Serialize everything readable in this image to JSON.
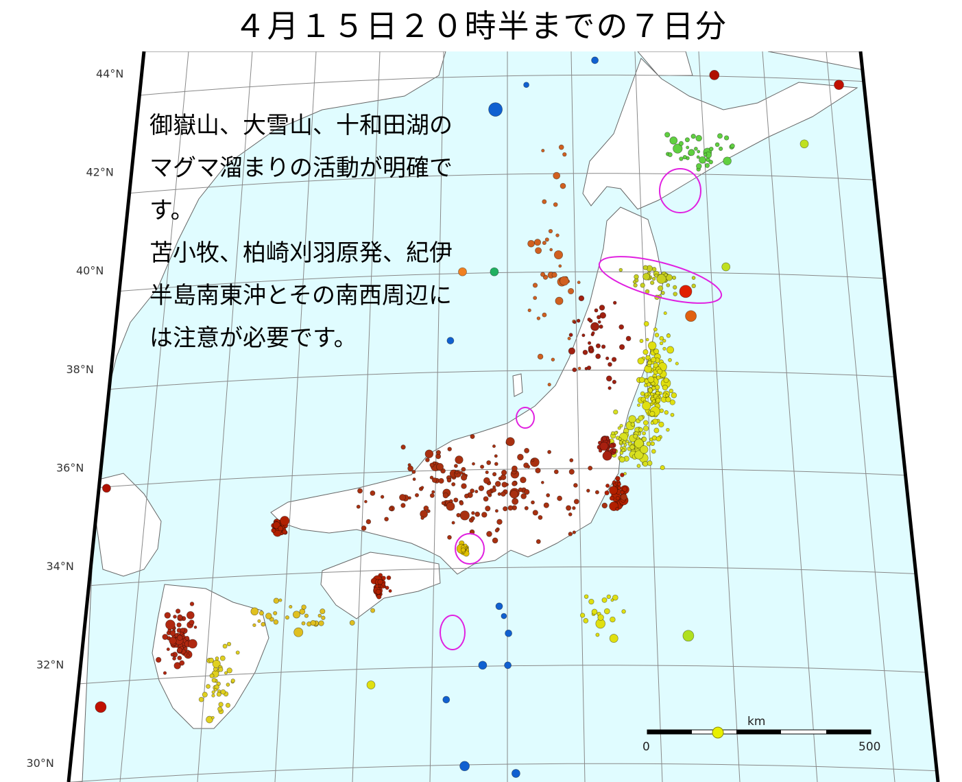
{
  "title": "４月１５日２０時半までの７日分",
  "note": {
    "lines": [
      "御嶽山、大雪山、十和田湖の",
      "マグマ溜まりの活動が明確で",
      "す。",
      "苫小牧、柏崎刈羽原発、紀伊",
      "半島南東沖とその南西周辺に",
      "は注意が必要です。"
    ]
  },
  "latitude_labels": [
    "44°N",
    "42°N",
    "40°N",
    "38°N",
    "36°N",
    "34°N",
    "32°N",
    "30°N"
  ],
  "scale_bar": {
    "unit": "km",
    "start": "0",
    "end": "500"
  },
  "colors": {
    "sea": "#e0fcff",
    "land": "#ffffff",
    "highlight_ellipse": "#e020e0",
    "shallow": "#b02000",
    "mid": "#e8e800",
    "deep": "#1060d0"
  },
  "quake_clusters": [
    {
      "lon": 140.8,
      "lat": 37.7,
      "slon": 0.35,
      "slat": 1.2,
      "n": 130,
      "color": "#e0e010"
    },
    {
      "lon": 140.3,
      "lat": 36.5,
      "slon": 0.35,
      "slat": 0.5,
      "n": 80,
      "color": "#d8e020"
    },
    {
      "lon": 140.0,
      "lat": 35.5,
      "slon": 0.2,
      "slat": 0.3,
      "n": 40,
      "color": "#b22000"
    },
    {
      "lon": 133.06,
      "lat": 34.8,
      "slon": 0.15,
      "slat": 0.12,
      "n": 40,
      "color": "#b02000"
    },
    {
      "lon": 131.2,
      "lat": 32.55,
      "slon": 0.3,
      "slat": 0.6,
      "n": 70,
      "color": "#b02810"
    },
    {
      "lon": 132.1,
      "lat": 31.6,
      "slon": 0.3,
      "slat": 0.7,
      "n": 40,
      "color": "#e0d020"
    },
    {
      "lon": 137.1,
      "lat": 35.6,
      "slon": 2.2,
      "slat": 0.9,
      "n": 170,
      "color": "#a83010"
    },
    {
      "lon": 135.2,
      "lat": 33.6,
      "slon": 0.15,
      "slat": 0.2,
      "n": 25,
      "color": "#b02000"
    },
    {
      "lon": 141.85,
      "lat": 42.45,
      "slon": 0.8,
      "slat": 0.4,
      "n": 35,
      "color": "#60d040"
    },
    {
      "lon": 140.85,
      "lat": 39.8,
      "slon": 0.6,
      "slat": 0.25,
      "n": 40,
      "color": "#c8d020"
    },
    {
      "lon": 139.7,
      "lat": 33.1,
      "slon": 0.4,
      "slat": 0.5,
      "n": 18,
      "color": "#e0e010"
    },
    {
      "lon": 138.6,
      "lat": 39.9,
      "slon": 0.5,
      "slat": 2.0,
      "n": 40,
      "color": "#d06020"
    },
    {
      "lon": 139.77,
      "lat": 36.46,
      "slon": 0.15,
      "slat": 0.2,
      "n": 30,
      "color": "#a82010"
    },
    {
      "lon": 136.9,
      "lat": 34.37,
      "slon": 0.12,
      "slat": 0.1,
      "n": 15,
      "color": "#e0c000"
    },
    {
      "lon": 133.5,
      "lat": 33.0,
      "slon": 1.2,
      "slat": 0.3,
      "n": 30,
      "color": "#e0c020"
    },
    {
      "lon": 139.5,
      "lat": 38.5,
      "slon": 0.6,
      "slat": 1.0,
      "n": 40,
      "color": "#a02010"
    }
  ],
  "quake_singles": [
    {
      "lon": 137.2,
      "lat": 43.3,
      "r": 10,
      "color": "#1060d0"
    },
    {
      "lon": 141.5,
      "lat": 39.6,
      "r": 9,
      "color": "#e02000"
    },
    {
      "lon": 141.6,
      "lat": 39.1,
      "r": 8,
      "color": "#e06010"
    },
    {
      "lon": 142.3,
      "lat": 44.0,
      "r": 7,
      "color": "#b01000"
    },
    {
      "lon": 145.2,
      "lat": 43.8,
      "r": 7,
      "color": "#c01000"
    },
    {
      "lon": 129.4,
      "lat": 35.6,
      "r": 6,
      "color": "#b01000"
    },
    {
      "lon": 129.8,
      "lat": 31.15,
      "r": 8,
      "color": "#c01000"
    },
    {
      "lon": 136.4,
      "lat": 38.6,
      "r": 5,
      "color": "#1060d0"
    },
    {
      "lon": 137.3,
      "lat": 32.0,
      "r": 6,
      "color": "#1060d0"
    },
    {
      "lon": 137.8,
      "lat": 32.0,
      "r": 5,
      "color": "#1060d0"
    },
    {
      "lon": 136.6,
      "lat": 31.3,
      "r": 5,
      "color": "#1060d0"
    },
    {
      "lon": 137.0,
      "lat": 29.95,
      "r": 7,
      "color": "#1060d0"
    },
    {
      "lon": 138.0,
      "lat": 29.8,
      "r": 6,
      "color": "#1060d0"
    },
    {
      "lon": 141.4,
      "lat": 32.6,
      "r": 8,
      "color": "#b0e020"
    },
    {
      "lon": 135.1,
      "lat": 31.6,
      "r": 6,
      "color": "#e0e010"
    },
    {
      "lon": 137.9,
      "lat": 43.8,
      "r": 4,
      "color": "#1060d0"
    },
    {
      "lon": 139.5,
      "lat": 44.3,
      "r": 5,
      "color": "#1060d0"
    },
    {
      "lon": 137.6,
      "lat": 33.2,
      "r": 5,
      "color": "#1060d0"
    },
    {
      "lon": 137.7,
      "lat": 33.0,
      "r": 4,
      "color": "#1060d0"
    },
    {
      "lon": 137.8,
      "lat": 32.65,
      "r": 5,
      "color": "#1060d0"
    },
    {
      "lon": 136.6,
      "lat": 40.0,
      "r": 6,
      "color": "#f08020"
    },
    {
      "lon": 137.3,
      "lat": 40.0,
      "r": 6,
      "color": "#20b060"
    },
    {
      "lon": 142.4,
      "lat": 40.1,
      "r": 6,
      "color": "#c0e020"
    },
    {
      "lon": 144.3,
      "lat": 42.6,
      "r": 6,
      "color": "#c0e020"
    }
  ]
}
